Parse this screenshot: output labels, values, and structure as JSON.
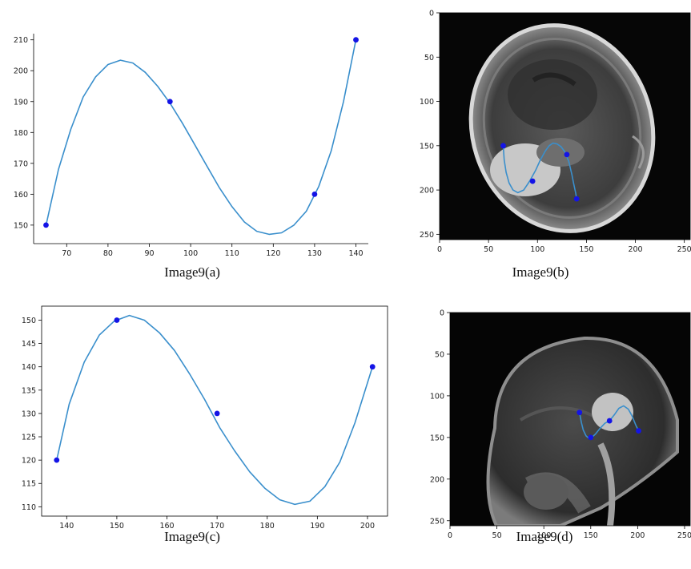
{
  "captions": {
    "a": "Image9(a)",
    "b": "Image9(b)",
    "c": "Image9(c)",
    "d": "Image9(d)"
  },
  "colors": {
    "curve": "#3a8fcc",
    "point": "#1414e6",
    "axis": "#000000",
    "background": "#ffffff"
  },
  "chart_data": [
    {
      "id": "a",
      "type": "line",
      "title": "",
      "xlabel": "",
      "ylabel": "",
      "xlim": [
        62,
        143
      ],
      "ylim": [
        144,
        212
      ],
      "xticks": [
        70,
        80,
        90,
        100,
        110,
        120,
        130,
        140
      ],
      "yticks": [
        150,
        160,
        170,
        180,
        190,
        200,
        210
      ],
      "grid": false,
      "frame": "left-bottom",
      "series": [
        {
          "x": [
            65,
            68,
            71,
            74,
            77,
            80,
            83,
            86,
            89,
            92,
            95,
            98,
            101,
            104,
            107,
            110,
            113,
            116,
            119,
            122,
            125,
            128,
            131,
            134,
            137,
            140
          ],
          "y": [
            150,
            168,
            181,
            191.5,
            198,
            202,
            203.4,
            202.5,
            199.5,
            195,
            189.5,
            183,
            176,
            169,
            162,
            156,
            151,
            148,
            147,
            147.5,
            150,
            154.5,
            162.5,
            174,
            190,
            210
          ]
        }
      ],
      "points": {
        "x": [
          65,
          95,
          130,
          140
        ],
        "y": [
          150,
          190,
          160,
          210
        ]
      }
    },
    {
      "id": "b",
      "type": "line",
      "title": "",
      "xlabel": "",
      "ylabel": "",
      "xlim": [
        0,
        256
      ],
      "ylim": [
        256,
        0
      ],
      "xticks": [
        0,
        50,
        100,
        150,
        200,
        250
      ],
      "yticks": [
        0,
        50,
        100,
        150,
        200,
        250
      ],
      "grid": false,
      "frame": "box",
      "background_image": "mri-axial-brain-scan",
      "series": [
        {
          "x": [
            65,
            66,
            68,
            71,
            75,
            80,
            86,
            92,
            98,
            103,
            108,
            112,
            116,
            120,
            124,
            128,
            132,
            135,
            137,
            139,
            140
          ],
          "y": [
            150,
            166,
            180,
            192,
            200,
            203,
            200,
            190,
            178,
            166,
            156,
            150,
            147,
            148,
            151,
            157,
            168,
            182,
            193,
            203,
            210
          ]
        }
      ],
      "points": {
        "x": [
          65,
          95,
          130,
          140
        ],
        "y": [
          150,
          190,
          160,
          210
        ]
      }
    },
    {
      "id": "c",
      "type": "line",
      "title": "",
      "xlabel": "",
      "ylabel": "",
      "xlim": [
        135,
        204
      ],
      "ylim": [
        108,
        153
      ],
      "xticks": [
        140,
        150,
        160,
        170,
        180,
        190,
        200
      ],
      "yticks": [
        110,
        115,
        120,
        125,
        130,
        135,
        140,
        145,
        150
      ],
      "grid": false,
      "frame": "box",
      "series": [
        {
          "x": [
            138,
            140.5,
            143.5,
            146.5,
            149.5,
            152.5,
            155.5,
            158.5,
            161.5,
            164.5,
            167.5,
            170.5,
            173.5,
            176.5,
            179.5,
            182.5,
            185.5,
            188.5,
            191.5,
            194.5,
            197.5,
            201
          ],
          "y": [
            120,
            132,
            141,
            146.8,
            149.8,
            151,
            150,
            147.3,
            143.5,
            138.5,
            133,
            127,
            122,
            117.5,
            114,
            111.5,
            110.5,
            111.2,
            114.3,
            119.6,
            128,
            140
          ]
        }
      ],
      "points": {
        "x": [
          138,
          150,
          170,
          201
        ],
        "y": [
          120,
          150,
          130,
          140
        ]
      }
    },
    {
      "id": "d",
      "type": "line",
      "title": "",
      "xlabel": "",
      "ylabel": "",
      "xlim": [
        0,
        256
      ],
      "ylim": [
        256,
        0
      ],
      "xticks": [
        0,
        50,
        100,
        150,
        200,
        250
      ],
      "yticks": [
        0,
        50,
        100,
        150,
        200,
        250
      ],
      "grid": false,
      "frame": "box",
      "background_image": "mri-sagittal-head-scan",
      "series": [
        {
          "x": [
            138,
            140,
            142,
            145,
            148,
            151,
            155,
            160,
            165,
            170,
            175,
            180,
            185,
            190,
            194,
            198,
            201
          ],
          "y": [
            120,
            132,
            141,
            148,
            151,
            150,
            146,
            139,
            133,
            130,
            123,
            115,
            112,
            116,
            124,
            135,
            142
          ]
        }
      ],
      "points": {
        "x": [
          138,
          150,
          170,
          201
        ],
        "y": [
          120,
          150,
          130,
          142
        ]
      }
    }
  ]
}
